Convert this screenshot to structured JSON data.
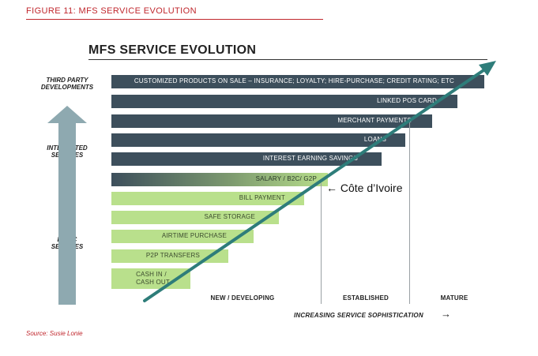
{
  "figure_label": "FIGURE 11: MFS SERVICE EVOLUTION",
  "title": "MFS SERVICE EVOLUTION",
  "side_labels": {
    "third_party": [
      "THIRD PARTY",
      "DEVELOPMENTS"
    ],
    "integrated": [
      "INTEGRATED",
      "SERVICES"
    ],
    "basic": [
      "BASIC",
      "SERVICES"
    ]
  },
  "bars": [
    {
      "label": "CUSTOMIZED  PRODUCTS ON SALE – INSURANCE; LOYALTY; HIRE-PURCHASE; CREDIT RATING; ETC",
      "style": "dark"
    },
    {
      "label": "LINKED POS CARD",
      "style": "dark"
    },
    {
      "label": "MERCHANT PAYMENTS",
      "style": "dark"
    },
    {
      "label": "LOANS",
      "style": "dark"
    },
    {
      "label": "INTEREST EARNING SAVINGS",
      "style": "dark"
    },
    {
      "label": "SALARY / B2C/ G2P",
      "style": "grad"
    },
    {
      "label": "BILL PAYMENT",
      "style": "green"
    },
    {
      "label": "SAFE STORAGE",
      "style": "green"
    },
    {
      "label": "AIRTIME PURCHASE",
      "style": "green"
    },
    {
      "label": "P2P TRANSFERS",
      "style": "green"
    },
    {
      "label": "CASH IN /\nCASH OUT",
      "style": "green"
    }
  ],
  "stages": [
    "NEW / DEVELOPING",
    "ESTABLISHED",
    "MATURE"
  ],
  "x_axis_label": "INCREASING SERVICE SOPHISTICATION",
  "x_axis_arrow": "→",
  "marker": "← Côte d’Ivoire",
  "source_prefix": "Source:",
  "source_value": " Susie Lonie",
  "colors": {
    "accent": "#c0272d",
    "dark_bar": "#3d4f5c",
    "green_bar": "#b9e08c",
    "teal_arrow": "#2e7d7a",
    "up_arrow": "#8ea9b0"
  }
}
